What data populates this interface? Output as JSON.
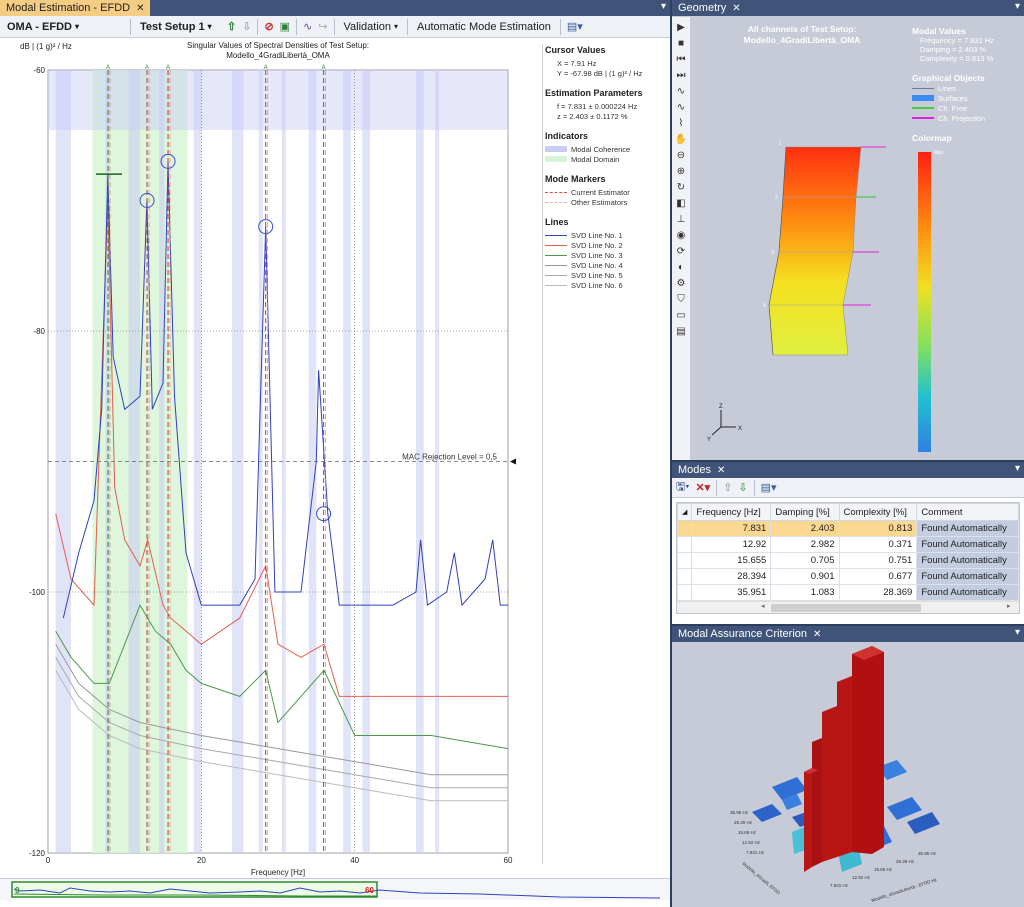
{
  "left_panel": {
    "tab_label": "Modal Estimation - EFDD",
    "toolbar": {
      "mode_select": "OMA - EFDD",
      "test_setup_select": "Test Setup 1",
      "validation_label": "Validation",
      "auto_mode_label": "Automatic Mode Estimation"
    }
  },
  "chart_data": {
    "type": "line",
    "title": "Singular Values of Spectral Densities of Test Setup:",
    "subtitle": "Modello_4GradiLibertà_OMA",
    "ylabel": "dB | (1 g)² / Hz",
    "xlabel": "Frequency [Hz]",
    "xlim": [
      0,
      60
    ],
    "ylim": [
      -120,
      -60
    ],
    "x_ticks": [
      "0",
      "20",
      "40",
      "60"
    ],
    "y_ticks": [
      "-60",
      "-80",
      "-100",
      "-120"
    ],
    "grid": "dotted",
    "mac_label": "MAC Rejection Level = 0,5",
    "mac_level_db": -90,
    "mode_marker_label": "A",
    "mode_markers_hz": [
      7.831,
      12.92,
      15.655,
      28.394,
      35.951
    ],
    "selected_peak": {
      "x": 7.831,
      "y": -67.98
    },
    "series": [
      {
        "name": "SVD Line No. 1",
        "color": "#3040c0",
        "points": [
          [
            2,
            -102
          ],
          [
            4,
            -97
          ],
          [
            6,
            -93
          ],
          [
            7,
            -86
          ],
          [
            7.8,
            -68
          ],
          [
            8.5,
            -82
          ],
          [
            10,
            -86
          ],
          [
            12,
            -85
          ],
          [
            12.9,
            -70
          ],
          [
            13.6,
            -86
          ],
          [
            15,
            -84
          ],
          [
            15.65,
            -67
          ],
          [
            16.5,
            -85
          ],
          [
            18,
            -97
          ],
          [
            20,
            -101
          ],
          [
            25,
            -101
          ],
          [
            27,
            -99
          ],
          [
            28.4,
            -72
          ],
          [
            29.6,
            -100
          ],
          [
            33,
            -100
          ],
          [
            35,
            -90
          ],
          [
            35.3,
            -83
          ],
          [
            36.5,
            -94
          ],
          [
            38,
            -101
          ],
          [
            45,
            -101
          ],
          [
            48,
            -100
          ],
          [
            48.6,
            -96
          ],
          [
            49.5,
            -101
          ],
          [
            52,
            -100
          ],
          [
            53,
            -97
          ],
          [
            54,
            -101
          ],
          [
            57,
            -99
          ],
          [
            58,
            -96
          ],
          [
            59,
            -101
          ],
          [
            60,
            -101
          ]
        ]
      },
      {
        "name": "SVD Line No. 2",
        "color": "#e06050",
        "points": [
          [
            1,
            -94
          ],
          [
            3,
            -99
          ],
          [
            6,
            -101
          ],
          [
            7.8,
            -70
          ],
          [
            8.7,
            -92
          ],
          [
            10,
            -96
          ],
          [
            12,
            -98
          ],
          [
            13,
            -96
          ],
          [
            15,
            -101
          ],
          [
            16,
            -102
          ],
          [
            18,
            -103
          ],
          [
            20,
            -104
          ],
          [
            25,
            -102
          ],
          [
            28.4,
            -98
          ],
          [
            30,
            -104
          ],
          [
            33,
            -105
          ],
          [
            36,
            -104
          ],
          [
            38,
            -108
          ],
          [
            45,
            -108
          ],
          [
            52,
            -108
          ],
          [
            60,
            -108
          ]
        ]
      },
      {
        "name": "SVD Line No. 3",
        "color": "#4a9a4a",
        "points": [
          [
            1,
            -103
          ],
          [
            3,
            -105
          ],
          [
            6,
            -107
          ],
          [
            8,
            -107
          ],
          [
            10,
            -104
          ],
          [
            12,
            -101
          ],
          [
            14,
            -103
          ],
          [
            16,
            -104
          ],
          [
            18,
            -106
          ],
          [
            20,
            -107
          ],
          [
            25,
            -108
          ],
          [
            28.4,
            -106
          ],
          [
            30,
            -110
          ],
          [
            36,
            -106
          ],
          [
            40,
            -111
          ],
          [
            50,
            -111
          ],
          [
            60,
            -112
          ]
        ]
      },
      {
        "name": "SVD Line No. 4",
        "color": "#9a9a9a",
        "points": [
          [
            1,
            -104
          ],
          [
            4,
            -107
          ],
          [
            8,
            -109
          ],
          [
            12,
            -110
          ],
          [
            20,
            -111
          ],
          [
            30,
            -112
          ],
          [
            40,
            -113
          ],
          [
            50,
            -114
          ],
          [
            60,
            -114
          ]
        ]
      },
      {
        "name": "SVD Line No. 5",
        "color": "#aaaaaa",
        "points": [
          [
            1,
            -105
          ],
          [
            4,
            -108
          ],
          [
            8,
            -110
          ],
          [
            12,
            -111
          ],
          [
            20,
            -112
          ],
          [
            30,
            -113
          ],
          [
            40,
            -114
          ],
          [
            50,
            -115
          ],
          [
            60,
            -115
          ]
        ]
      },
      {
        "name": "SVD Line No. 6",
        "color": "#bbbbbb",
        "points": [
          [
            1,
            -106
          ],
          [
            4,
            -109
          ],
          [
            8,
            -111
          ],
          [
            12,
            -112
          ],
          [
            20,
            -113
          ],
          [
            30,
            -114
          ],
          [
            40,
            -115
          ],
          [
            50,
            -116
          ],
          [
            60,
            -116
          ]
        ]
      }
    ],
    "modal_domain_hz": [
      [
        5.8,
        18.2
      ]
    ],
    "coherence_bands_hz": [
      [
        1,
        3
      ],
      [
        7.5,
        8
      ],
      [
        10.5,
        12
      ],
      [
        14.5,
        15.2
      ],
      [
        19,
        20
      ],
      [
        24,
        25.5
      ],
      [
        27.5,
        28
      ],
      [
        30.5,
        31
      ],
      [
        34,
        35
      ],
      [
        38.5,
        39.5
      ],
      [
        41,
        42
      ],
      [
        48,
        49
      ],
      [
        50.5,
        51
      ]
    ]
  },
  "legend": {
    "cursor_title": "Cursor Values",
    "cursor_x": "X = 7.91 Hz",
    "cursor_y": "Y = -67.98 dB | (1 g)² / Hz",
    "est_title": "Estimation Parameters",
    "est_f": "f = 7.831 ± 0.000224 Hz",
    "est_z": "z = 2.403 ± 0.1172 %",
    "ind_title": "Indicators",
    "ind_coh": "Modal Coherence",
    "ind_dom": "Modal Domain",
    "mm_title": "Mode Markers",
    "mm_cur": "Current Estimator",
    "mm_oth": "Other Estimators",
    "lines_title": "Lines",
    "line_names": [
      "SVD Line No. 1",
      "SVD Line No. 2",
      "SVD Line No. 3",
      "SVD Line No. 4",
      "SVD Line No. 5",
      "SVD Line No. 6"
    ]
  },
  "overview": {
    "start": "0",
    "end": "60"
  },
  "geometry": {
    "tab_label": "Geometry",
    "title_line1": "All channels of Test Setup:",
    "title_line2": "Modello_4GradiLibertà_OMA",
    "modal_title": "Modal Values",
    "freq": "Frequency = 7.831 Hz",
    "damp": "Damping = 2.403 %",
    "comp": "Complexity = 0.813 %",
    "go_title": "Graphical Objects",
    "go_items": [
      "Lines",
      "Surfaces",
      "Ch. Free",
      "Ch. Projection"
    ],
    "cmap_title": "Colormap",
    "cmap_max": "Max",
    "node_labels": [
      "1",
      "2",
      "3",
      "4"
    ],
    "axes": [
      "X",
      "Y",
      "Z"
    ]
  },
  "modes": {
    "tab_label": "Modes",
    "headers": [
      "Frequency [Hz]",
      "Damping [%]",
      "Complexity [%]",
      "Comment"
    ],
    "rows": [
      [
        "7.831",
        "2.403",
        "0.813",
        "Found Automatically"
      ],
      [
        "12.92",
        "2.982",
        "0.371",
        "Found Automatically"
      ],
      [
        "15.655",
        "0.705",
        "0.751",
        "Found Automatically"
      ],
      [
        "28.394",
        "0.901",
        "0.677",
        "Found Automatically"
      ],
      [
        "35.951",
        "1.083",
        "28.369",
        "Found Automatically"
      ]
    ]
  },
  "mac": {
    "tab_label": "Modal Assurance Criterion",
    "row_labels": [
      "35.95 Hz",
      "28.39 Hz",
      "15.65 Hz",
      "12.92 Hz",
      "7.831 Hz"
    ],
    "col_labels": [
      "7.831 Hz",
      "12.92 Hz",
      "15.65 Hz",
      "28.39 Hz",
      "35.95 Hz"
    ],
    "axis_left": "Modello_4GradiL EFDD",
    "axis_right": "Modello_4GradiLibertà - EFDD Hz"
  }
}
